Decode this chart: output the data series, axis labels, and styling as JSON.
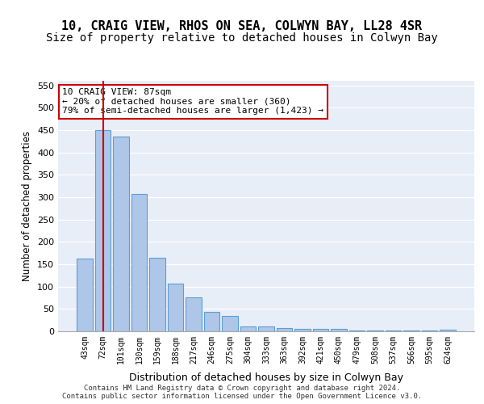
{
  "title1": "10, CRAIG VIEW, RHOS ON SEA, COLWYN BAY, LL28 4SR",
  "title2": "Size of property relative to detached houses in Colwyn Bay",
  "xlabel": "Distribution of detached houses by size in Colwyn Bay",
  "ylabel": "Number of detached properties",
  "categories": [
    "43sqm",
    "72sqm",
    "101sqm",
    "130sqm",
    "159sqm",
    "188sqm",
    "217sqm",
    "246sqm",
    "275sqm",
    "304sqm",
    "333sqm",
    "363sqm",
    "392sqm",
    "421sqm",
    "450sqm",
    "479sqm",
    "508sqm",
    "537sqm",
    "566sqm",
    "595sqm",
    "624sqm"
  ],
  "values": [
    163,
    450,
    435,
    307,
    165,
    107,
    75,
    43,
    35,
    10,
    10,
    8,
    6,
    6,
    6,
    2,
    2,
    1,
    1,
    1,
    4
  ],
  "bar_color": "#aec6e8",
  "bar_edge_color": "#5a9fd4",
  "property_line_x": 1,
  "property_line_color": "#cc0000",
  "annotation_text": "10 CRAIG VIEW: 87sqm\n← 20% of detached houses are smaller (360)\n79% of semi-detached houses are larger (1,423) →",
  "annotation_box_color": "#ffffff",
  "annotation_box_edge": "#cc0000",
  "ylim": [
    0,
    560
  ],
  "yticks": [
    0,
    50,
    100,
    150,
    200,
    250,
    300,
    350,
    400,
    450,
    500,
    550
  ],
  "background_color": "#e8eef8",
  "footer_text": "Contains HM Land Registry data © Crown copyright and database right 2024.\nContains public sector information licensed under the Open Government Licence v3.0.",
  "title_fontsize": 11,
  "subtitle_fontsize": 10
}
